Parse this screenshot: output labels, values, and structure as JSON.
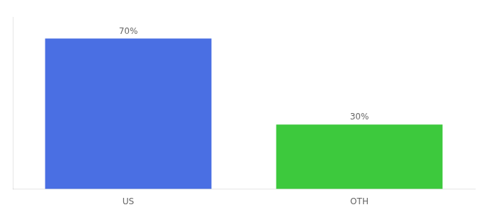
{
  "chart_data": {
    "type": "bar",
    "categories": [
      "US",
      "OTH"
    ],
    "values": [
      70,
      30
    ],
    "value_labels": [
      "70%",
      "30%"
    ],
    "colors": [
      "#4A6FE3",
      "#3DC93D"
    ],
    "ylim": [
      0,
      80
    ],
    "tick_labels": "x",
    "data_labels": true,
    "grid": false
  }
}
